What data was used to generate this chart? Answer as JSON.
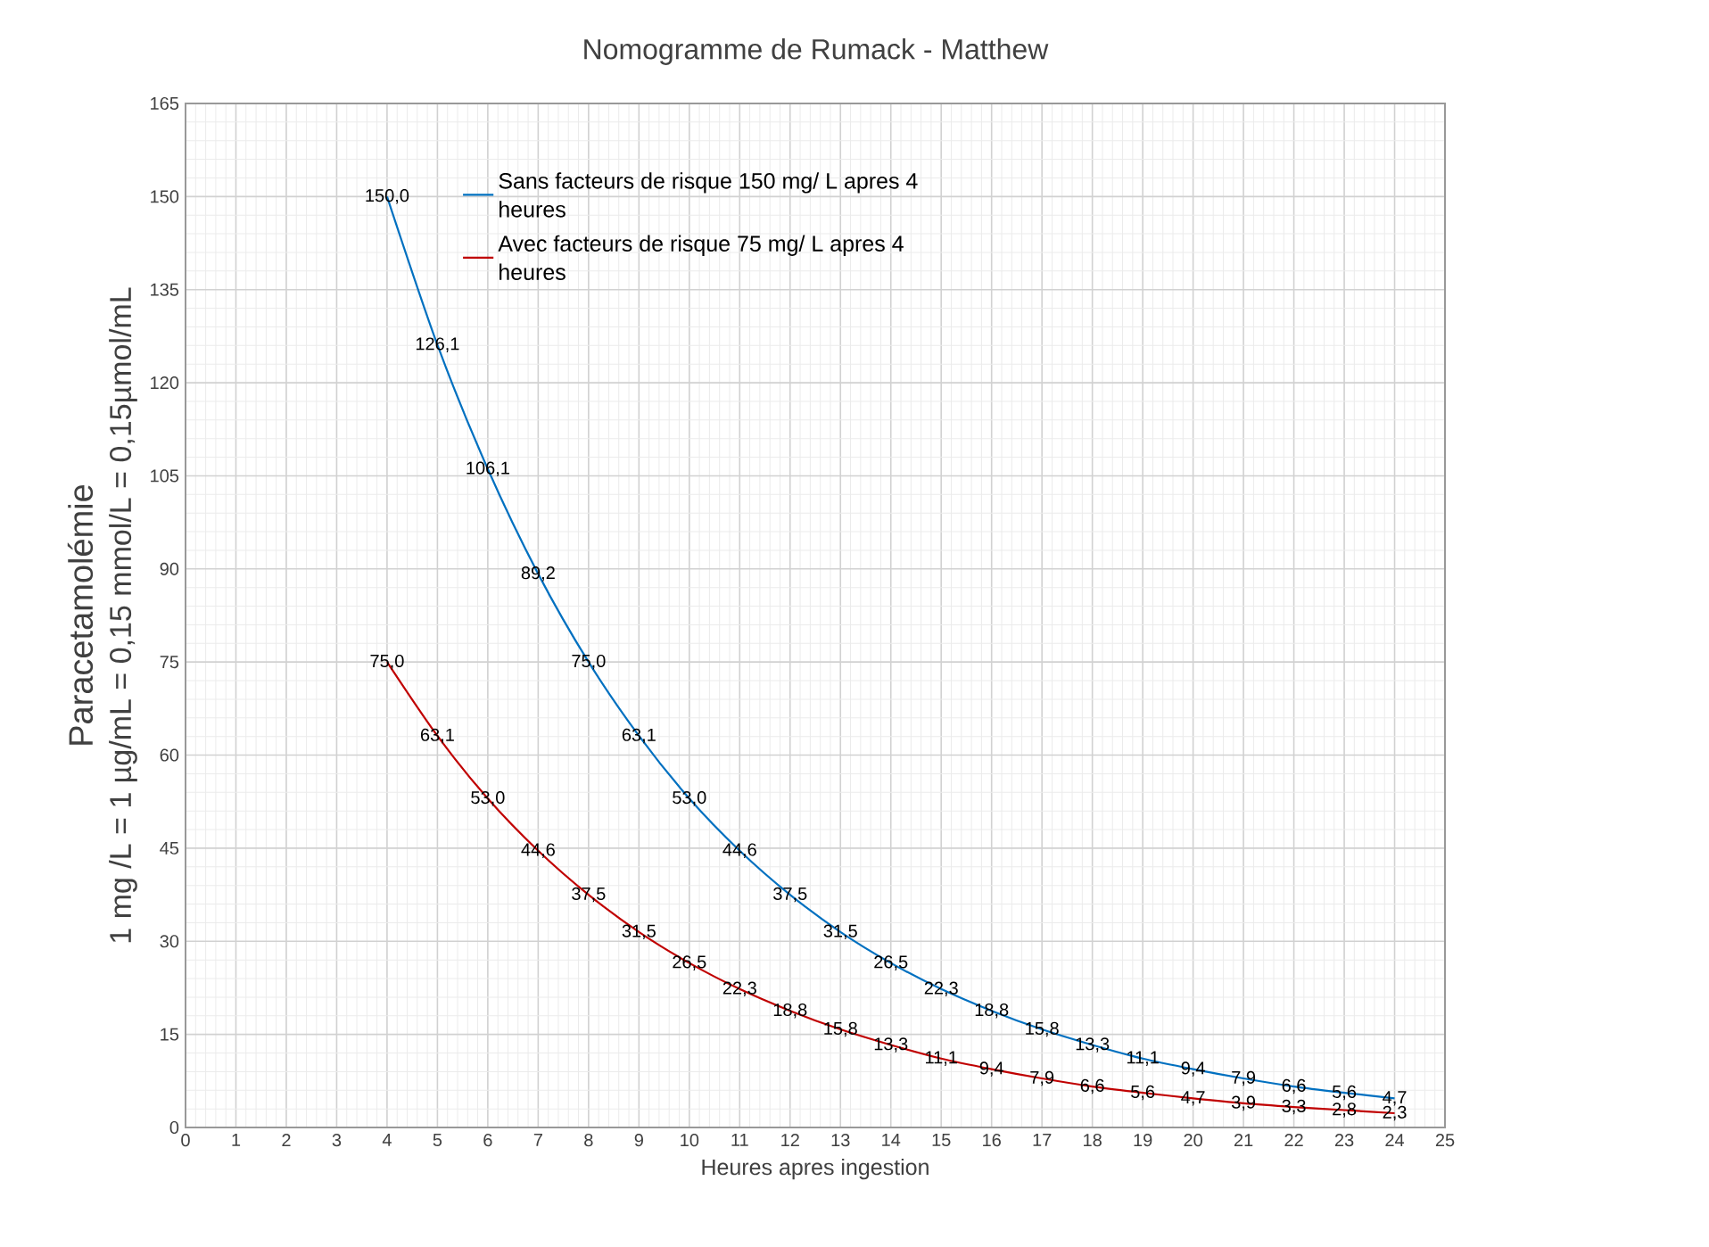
{
  "chart_data": {
    "type": "line",
    "title": "Nomogramme de Rumack - Matthew",
    "xlabel": "Heures apres ingestion",
    "ylabel": [
      "Paracetamolémie",
      "1 mg /L = 1 µg/mL = 0,15 mmol/L = 0,15µmol/mL"
    ],
    "x": [
      4,
      5,
      6,
      7,
      8,
      9,
      10,
      11,
      12,
      13,
      14,
      15,
      16,
      17,
      18,
      19,
      20,
      21,
      22,
      23,
      24
    ],
    "series": [
      {
        "name": "Sans facteurs de risque 150 mg/ L apres 4 heures",
        "color": "#0070c0",
        "values": [
          150.0,
          126.1,
          106.1,
          89.2,
          75.0,
          63.1,
          53.0,
          44.6,
          37.5,
          31.5,
          26.5,
          22.3,
          18.8,
          15.8,
          13.3,
          11.1,
          9.4,
          7.9,
          6.6,
          5.6,
          4.7
        ],
        "value_labels": [
          "150,0",
          "126,1",
          "106,1",
          "89,2",
          "75,0",
          "63,1",
          "53,0",
          "44,6",
          "37,5",
          "31,5",
          "26,5",
          "22,3",
          "18,8",
          "15,8",
          "13,3",
          "11,1",
          "9,4",
          "7,9",
          "6,6",
          "5,6",
          "4,7"
        ]
      },
      {
        "name": "Avec facteurs de risque 75 mg/ L apres 4 heures",
        "color": "#c00000",
        "values": [
          75.0,
          63.1,
          53.0,
          44.6,
          37.5,
          31.5,
          26.5,
          22.3,
          18.8,
          15.8,
          13.3,
          11.1,
          9.4,
          7.9,
          6.6,
          5.6,
          4.7,
          3.9,
          3.3,
          2.8,
          2.3
        ],
        "value_labels": [
          "75,0",
          "63,1",
          "53,0",
          "44,6",
          "37,5",
          "31,5",
          "26,5",
          "22,3",
          "18,8",
          "15,8",
          "13,3",
          "11,1",
          "9,4",
          "7,9",
          "6,6",
          "5,6",
          "4,7",
          "3,9",
          "3,3",
          "2,8",
          "2,3"
        ]
      }
    ],
    "xlim": [
      0,
      25
    ],
    "xticks": [
      0,
      1,
      2,
      3,
      4,
      5,
      6,
      7,
      8,
      9,
      10,
      11,
      12,
      13,
      14,
      15,
      16,
      17,
      18,
      19,
      20,
      21,
      22,
      23,
      24,
      25
    ],
    "ylim": [
      0,
      165
    ],
    "yticks": [
      0,
      15,
      30,
      45,
      60,
      75,
      90,
      105,
      120,
      135,
      150,
      165
    ],
    "grid": true,
    "legend": "top left"
  }
}
